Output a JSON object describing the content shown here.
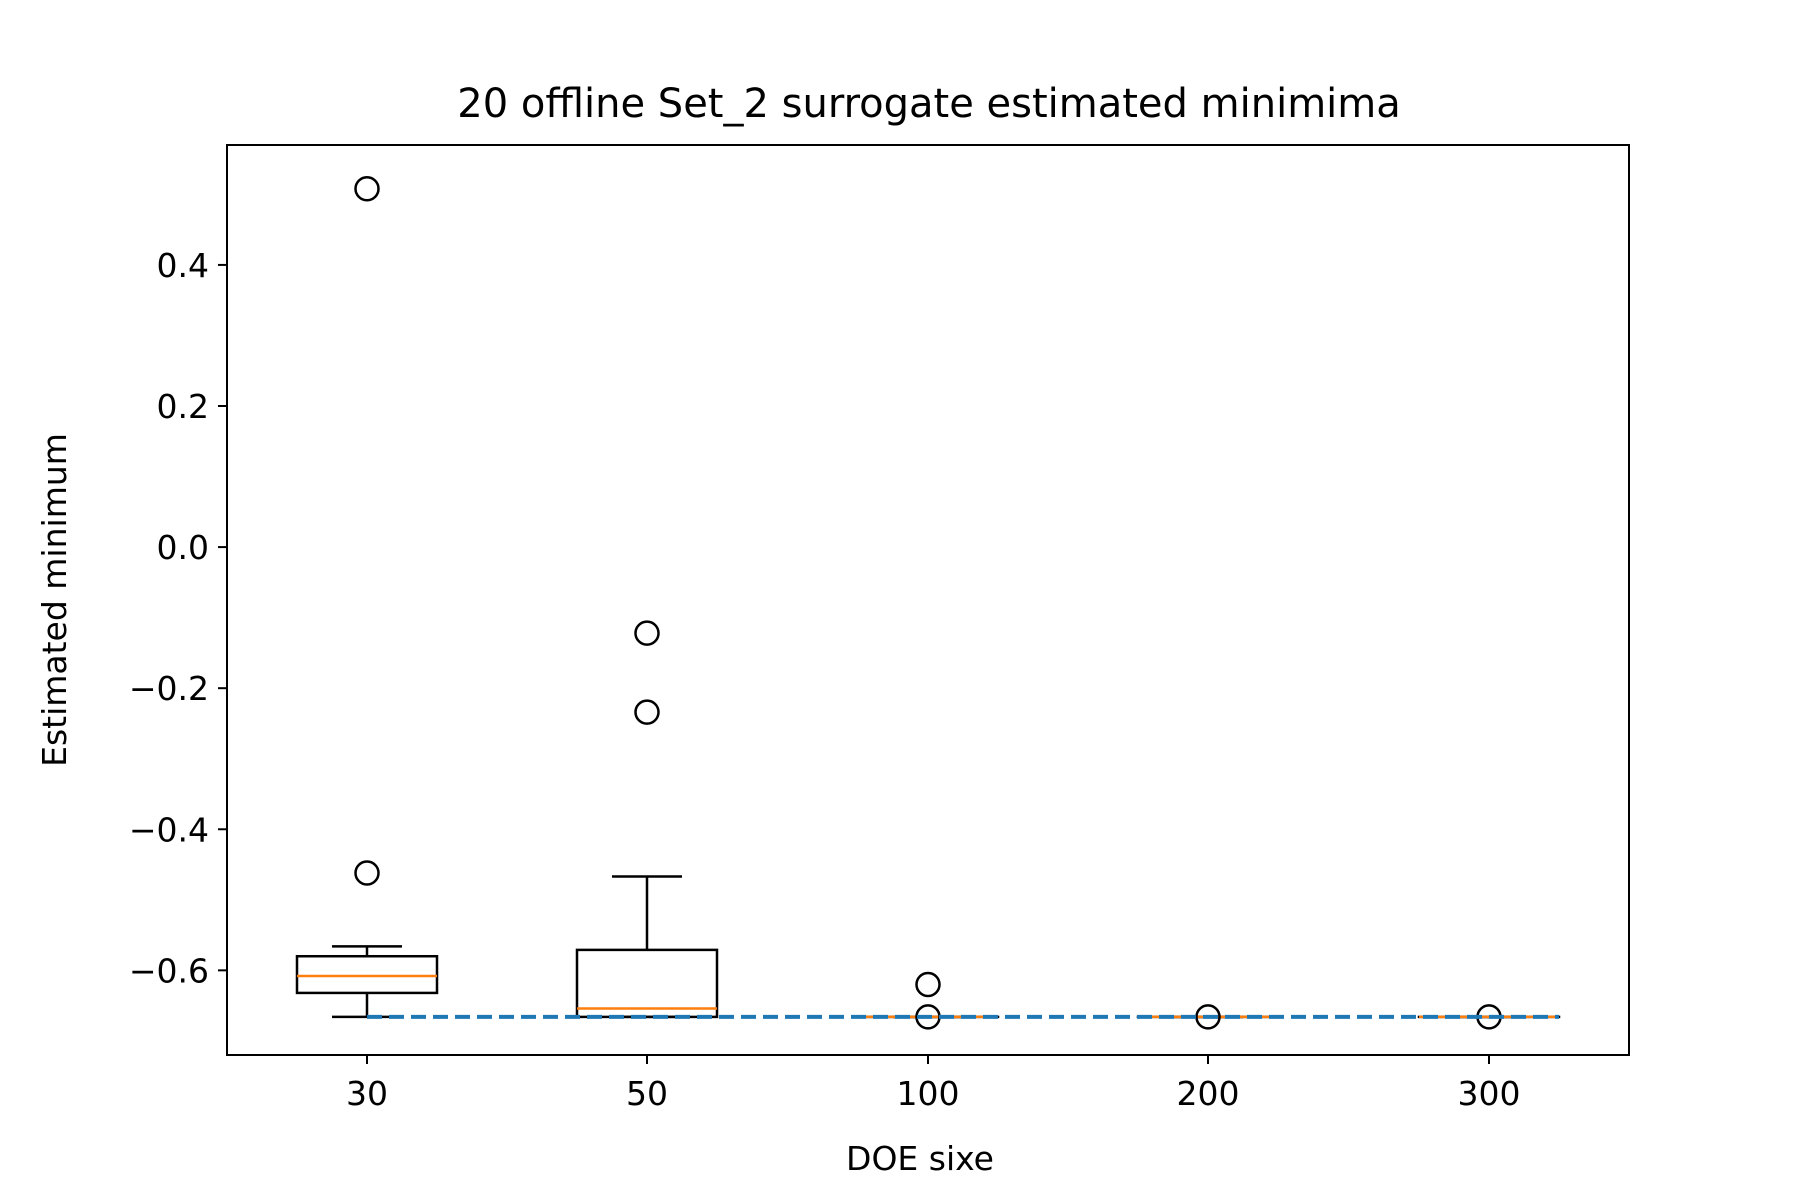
{
  "chart_data": {
    "type": "box",
    "title": "20 offline Set_2 surrogate estimated minimima",
    "xlabel": "DOE sixe",
    "ylabel": "Estimated minimum",
    "categories": [
      "30",
      "50",
      "100",
      "200",
      "300"
    ],
    "ylim": [
      -0.72,
      0.57
    ],
    "yticks": [
      {
        "value": 0.4,
        "label": "0.4"
      },
      {
        "value": 0.2,
        "label": "0.2"
      },
      {
        "value": 0.0,
        "label": "0.0"
      },
      {
        "value": -0.2,
        "label": "−0.2"
      },
      {
        "value": -0.4,
        "label": "−0.4"
      },
      {
        "value": -0.6,
        "label": "−0.6"
      }
    ],
    "boxes": [
      {
        "category": "30",
        "whisker_low": -0.666,
        "q1": -0.632,
        "median": -0.608,
        "q3": -0.58,
        "whisker_high": -0.566,
        "outliers": [
          0.508,
          -0.462
        ]
      },
      {
        "category": "50",
        "whisker_low": -0.666,
        "q1": -0.666,
        "median": -0.654,
        "q3": -0.571,
        "whisker_high": -0.467,
        "outliers": [
          -0.122,
          -0.234
        ]
      },
      {
        "category": "100",
        "whisker_low": -0.666,
        "q1": -0.666,
        "median": -0.666,
        "q3": -0.666,
        "whisker_high": -0.666,
        "outliers": [
          -0.62,
          -0.666
        ]
      },
      {
        "category": "200",
        "whisker_low": -0.666,
        "q1": -0.666,
        "median": -0.666,
        "q3": -0.666,
        "whisker_high": -0.666,
        "outliers": [
          -0.666
        ]
      },
      {
        "category": "300",
        "whisker_low": -0.666,
        "q1": -0.666,
        "median": -0.666,
        "q3": -0.666,
        "whisker_high": -0.666,
        "outliers": [
          -0.666
        ]
      }
    ],
    "reference_line": {
      "value": -0.666,
      "style": "dashed",
      "color": "#1f77b4"
    },
    "colors": {
      "box": "#000000",
      "median": "#ff7f0e",
      "reference": "#1f77b4"
    },
    "grid": false
  }
}
